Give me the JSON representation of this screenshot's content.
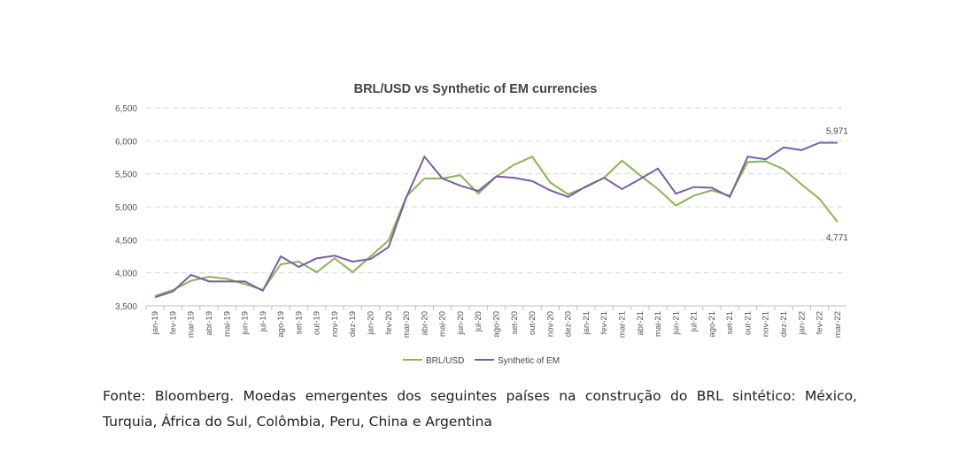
{
  "chart_data": {
    "type": "line",
    "title": "BRL/USD vs Synthetic of EM currencies",
    "xlabel": "",
    "ylabel": "",
    "ylim": [
      3500,
      6500
    ],
    "yticks": [
      "3,500",
      "4,000",
      "4,500",
      "5,000",
      "5,500",
      "6,000",
      "6,500"
    ],
    "ytick_values": [
      3500,
      4000,
      4500,
      5000,
      5500,
      6000,
      6500
    ],
    "grid": true,
    "legend_position": "bottom",
    "categories": [
      "jan-19",
      "fev-19",
      "mar-19",
      "abr-19",
      "mai-19",
      "jun-19",
      "jul-19",
      "ago-19",
      "set-19",
      "out-19",
      "nov-19",
      "dez-19",
      "jan-20",
      "fev-20",
      "mar-20",
      "abr-20",
      "mai-20",
      "jun-20",
      "jul-20",
      "ago-20",
      "set-20",
      "out-20",
      "nov-20",
      "dez-20",
      "jan-21",
      "fev-21",
      "mar-21",
      "abr-21",
      "mai-21",
      "jun-21",
      "jul-21",
      "ago-21",
      "set-21",
      "out-21",
      "nov-21",
      "dez-21",
      "jan-22",
      "fev-22",
      "mar-22"
    ],
    "series": [
      {
        "name": "BRL/USD",
        "color": "#8db356",
        "values": [
          3650,
          3740,
          3880,
          3940,
          3910,
          3830,
          3740,
          4130,
          4170,
          4010,
          4220,
          4010,
          4250,
          4490,
          5160,
          5430,
          5430,
          5480,
          5200,
          5460,
          5640,
          5760,
          5370,
          5190,
          5300,
          5440,
          5700,
          5480,
          5270,
          5020,
          5170,
          5250,
          5170,
          5680,
          5690,
          5570,
          5340,
          5120,
          4771
        ],
        "end_label": "4,771"
      },
      {
        "name": "Synthetic of EM",
        "color": "#7a5fa0",
        "values": [
          3630,
          3720,
          3970,
          3870,
          3870,
          3870,
          3730,
          4250,
          4090,
          4220,
          4260,
          4170,
          4210,
          4390,
          5150,
          5760,
          5430,
          5320,
          5240,
          5460,
          5440,
          5390,
          5250,
          5150,
          5310,
          5440,
          5270,
          5420,
          5580,
          5200,
          5300,
          5290,
          5150,
          5760,
          5720,
          5900,
          5860,
          5971,
          5971
        ],
        "end_label": "5,971"
      }
    ]
  },
  "caption": "Fonte: Bloomberg. Moedas emergentes dos seguintes países na construção do BRL sintético: México, Turquia, África do Sul, Colômbia, Peru, China e Argentina"
}
